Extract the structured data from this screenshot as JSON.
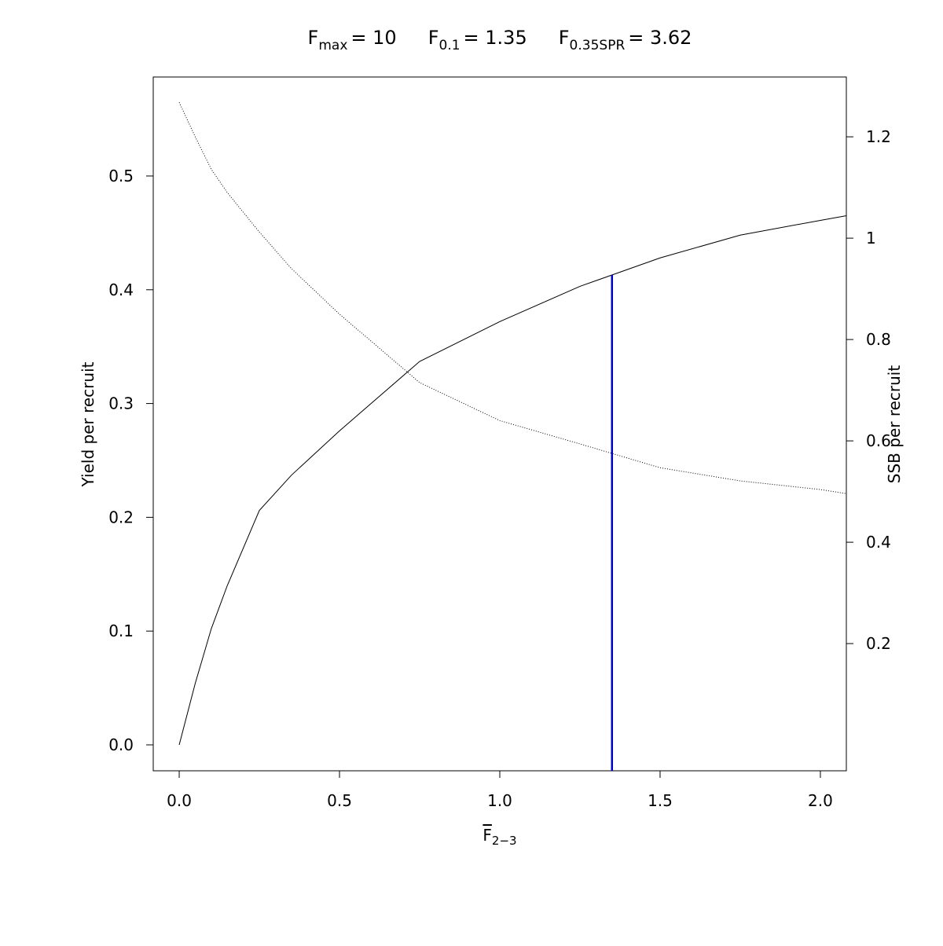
{
  "chart_data": {
    "type": "line",
    "reference_points": [
      {
        "symbol": "F",
        "subscript": "max",
        "value": 10,
        "value_label": "= 10"
      },
      {
        "symbol": "F",
        "subscript": "0.1",
        "value": 1.35,
        "value_label": "= 1.35"
      },
      {
        "symbol": "F",
        "subscript": "0.35SPR",
        "value": 3.62,
        "value_label": "= 3.62"
      }
    ],
    "reference_line_color": "#0000cc",
    "xlabel": {
      "symbol": "F",
      "subscript": "2−3"
    },
    "ylabel": "Yield per recruit",
    "y2label": "SSB per recruit",
    "x": [
      0,
      0.05,
      0.1,
      0.15,
      0.25,
      0.35,
      0.5,
      0.75,
      1.0,
      1.25,
      1.5,
      1.75,
      2.0,
      2.08
    ],
    "series": [
      {
        "color": "#000000",
        "line_style": "solid",
        "values": [
          0,
          0.054,
          0.102,
          0.14,
          0.206,
          0.237,
          0.276,
          0.337,
          0.372,
          0.403,
          0.428,
          0.448,
          0.461,
          0.465
        ]
      },
      {
        "color": "#000000",
        "line_style": "dotted",
        "axis": "y2",
        "values": [
          1.268,
          1.2,
          1.136,
          1.09,
          1.012,
          0.94,
          0.85,
          0.715,
          0.64,
          0.594,
          0.547,
          0.521,
          0.504,
          0.496
        ]
      }
    ],
    "xlim": [
      -0.081,
      2.081
    ],
    "xticks": [
      {
        "value": 0,
        "label": "0.0"
      },
      0.5,
      {
        "value": 1,
        "label": "1.0"
      },
      1.5,
      {
        "value": 2,
        "label": "2.0"
      }
    ],
    "ylim": [
      -0.0228,
      0.587
    ],
    "yticks": [
      {
        "value": 0,
        "label": "0.0"
      },
      0.1,
      0.2,
      0.3,
      0.4,
      0.5
    ],
    "y2lim": [
      -0.051,
      1.318
    ],
    "y2ticks": [
      0.2,
      0.4,
      0.6,
      0.8,
      1,
      1.2
    ]
  }
}
